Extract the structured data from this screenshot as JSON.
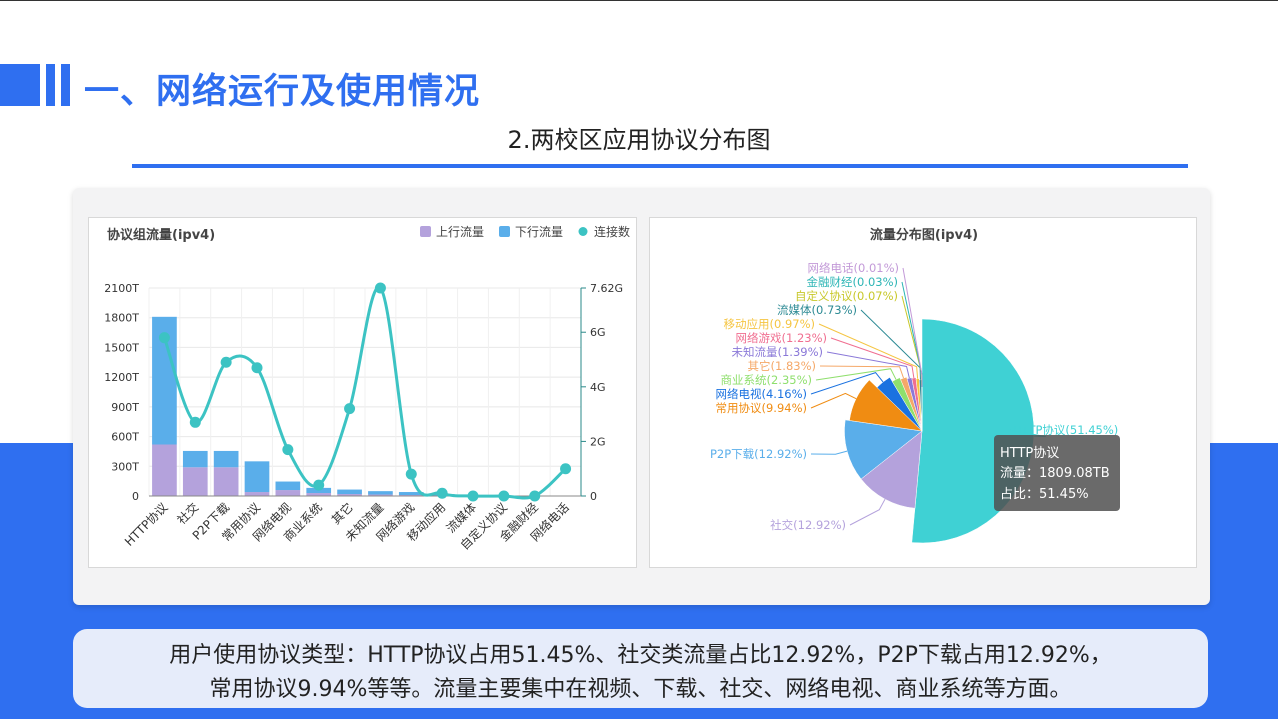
{
  "page": {
    "title": "一、网络运行及使用情况",
    "subtitle": "2.两校区应用协议分布图",
    "summary_line1": "用户使用协议类型：HTTP协议占用51.45%、社交类流量占比12.92%，P2P下载占用12.92%，",
    "summary_line2": "常用协议9.94%等等。流量主要集中在视频、下载、社交、网络电视、商业系统等方面。"
  },
  "colors": {
    "accent": "#2f6ff0",
    "upload": "#b4a2dc",
    "download": "#5aaeea",
    "connections": "#3cc3c3"
  },
  "chart_data": [
    {
      "type": "bar",
      "title": "协议组流量(ipv4)",
      "legend_position": "top-right",
      "categories": [
        "HTTP协议",
        "社交",
        "P2P下载",
        "常用协议",
        "网络电视",
        "商业系统",
        "其它",
        "未知流量",
        "网络游戏",
        "移动应用",
        "流媒体",
        "自定义协议",
        "金融财经",
        "网络电话"
      ],
      "series": [
        {
          "name": "上行流量",
          "kind": "bar",
          "stack": "traffic",
          "axis": "left",
          "values": [
            520,
            290,
            290,
            40,
            60,
            30,
            20,
            15,
            10,
            5,
            2,
            1,
            1,
            0
          ]
        },
        {
          "name": "下行流量",
          "kind": "bar",
          "stack": "traffic",
          "axis": "left",
          "values": [
            1289,
            165,
            165,
            310,
            86,
            52,
            45,
            34,
            30,
            15,
            8,
            2,
            1,
            0
          ]
        },
        {
          "name": "连接数",
          "kind": "line",
          "smooth": true,
          "axis": "right",
          "values": [
            5.8,
            2.7,
            4.9,
            4.7,
            1.7,
            0.4,
            3.2,
            7.62,
            0.8,
            0.1,
            0.0,
            0.0,
            0.0,
            1.0
          ]
        }
      ],
      "y_left": {
        "ticks": [
          "0",
          "300T",
          "600T",
          "900T",
          "1200T",
          "1500T",
          "1800T",
          "2100T"
        ],
        "ylim": [
          0,
          2100
        ]
      },
      "y_right": {
        "ticks": [
          "0",
          "2G",
          "4G",
          "6G",
          "7.62G"
        ],
        "tick_values": [
          0,
          2,
          4,
          6,
          7.62
        ],
        "ylim": [
          0,
          7.62
        ]
      },
      "grid": true
    },
    {
      "type": "pie",
      "title": "流量分布图(ipv4)",
      "slices": [
        {
          "name": "HTTP协议",
          "value": 51.45,
          "label": "HTTP协议(51.45%)",
          "color": "#3fd1d4"
        },
        {
          "name": "社交",
          "value": 12.92,
          "label": "社交(12.92%)",
          "color": "#b4a2dc"
        },
        {
          "name": "P2P下载",
          "value": 12.92,
          "label": "P2P下载(12.92%)",
          "color": "#5aaeea"
        },
        {
          "name": "常用协议",
          "value": 9.94,
          "label": "常用协议(9.94%)",
          "color": "#f08c12"
        },
        {
          "name": "网络电视",
          "value": 4.16,
          "label": "网络电视(4.16%)",
          "color": "#1a72e0"
        },
        {
          "name": "商业系统",
          "value": 2.35,
          "label": "商业系统(2.35%)",
          "color": "#8fdf6d"
        },
        {
          "name": "其它",
          "value": 1.83,
          "label": "其它(1.83%)",
          "color": "#f5a868"
        },
        {
          "name": "未知流量",
          "value": 1.39,
          "label": "未知流量(1.39%)",
          "color": "#8a78d8"
        },
        {
          "name": "网络游戏",
          "value": 1.23,
          "label": "网络游戏(1.23%)",
          "color": "#f06e90"
        },
        {
          "name": "移动应用",
          "value": 0.97,
          "label": "移动应用(0.97%)",
          "color": "#f5c542"
        },
        {
          "name": "流媒体",
          "value": 0.73,
          "label": "流媒体(0.73%)",
          "color": "#2c8a94"
        },
        {
          "name": "自定义协议",
          "value": 0.07,
          "label": "自定义协议(0.07%)",
          "color": "#c8c82a"
        },
        {
          "name": "金融财经",
          "value": 0.03,
          "label": "金融财经(0.03%)",
          "color": "#2cb5b5"
        },
        {
          "name": "网络电话",
          "value": 0.01,
          "label": "网络电话(0.01%)",
          "color": "#c39ad8"
        }
      ],
      "tooltip": {
        "title": "HTTP协议",
        "line1": "流量：1809.08TB",
        "line2": "占比：51.45%"
      }
    }
  ]
}
